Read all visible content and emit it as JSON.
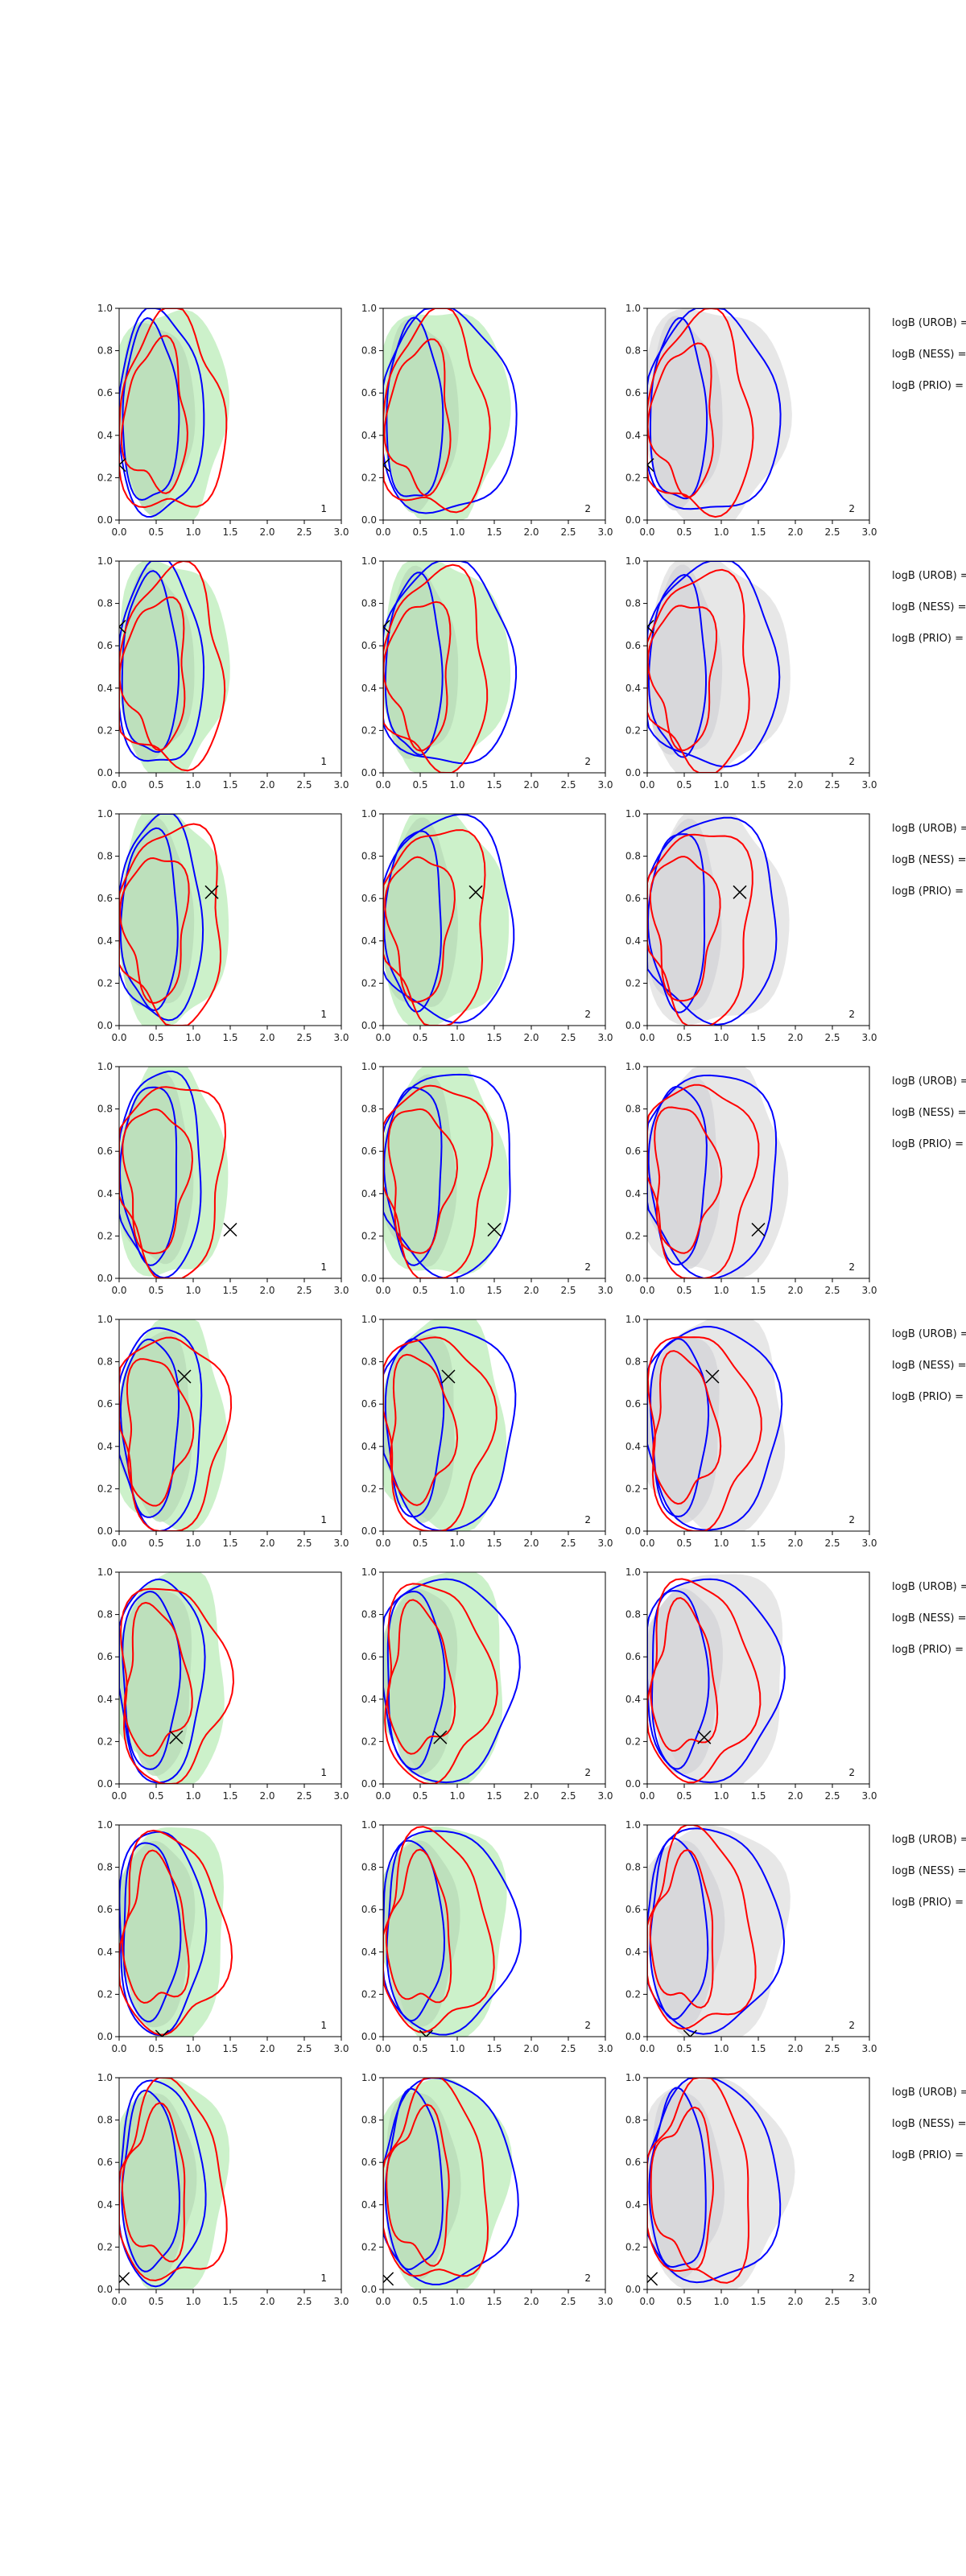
{
  "chart_data": {
    "type": "contour-grid",
    "layout": {
      "rows": 8,
      "cols": 3
    },
    "xlim": [
      0.0,
      3.0
    ],
    "ylim": [
      0.0,
      1.0
    ],
    "xticks": [
      "0.0",
      "0.5",
      "1.0",
      "1.5",
      "2.0",
      "2.5",
      "3.0"
    ],
    "yticks": [
      "0.0",
      "0.2",
      "0.4",
      "0.6",
      "0.8",
      "1.0"
    ],
    "colors": {
      "green_fill": "#c6f0c4",
      "gray_fill": "#e4e4e4",
      "blue_line": "#0000ff",
      "red_line": "#ff0000",
      "marker": "#000000"
    },
    "col_labels": [
      "1",
      "2",
      "2"
    ],
    "side_labels": [
      "logB (UROB) =",
      "logB (NESS) =",
      "logB (PRIO) ="
    ],
    "rows": [
      {
        "marker": [
          0.0,
          0.26
        ]
      },
      {
        "marker": [
          0.0,
          0.69
        ]
      },
      {
        "marker": [
          1.25,
          0.63
        ]
      },
      {
        "marker": [
          1.5,
          0.23
        ]
      },
      {
        "marker": [
          0.88,
          0.73
        ]
      },
      {
        "marker": [
          0.77,
          0.22
        ]
      },
      {
        "marker": [
          0.58,
          0.0
        ]
      },
      {
        "marker": [
          0.05,
          0.05
        ]
      }
    ]
  }
}
